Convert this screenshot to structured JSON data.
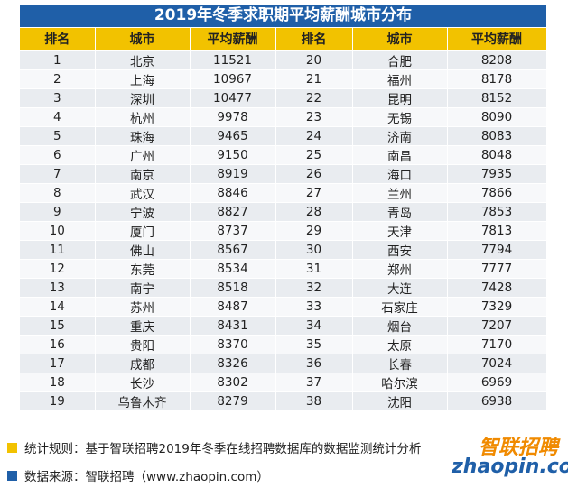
{
  "header": {
    "title": "2019年冬季求职期平均薪酬城市分布"
  },
  "table": {
    "columns": [
      "排名",
      "城市",
      "平均薪酬",
      "排名",
      "城市",
      "平均薪酬"
    ],
    "rows": [
      [
        1,
        "北京",
        11521,
        20,
        "合肥",
        8208
      ],
      [
        2,
        "上海",
        10967,
        21,
        "福州",
        8178
      ],
      [
        3,
        "深圳",
        10477,
        22,
        "昆明",
        8152
      ],
      [
        4,
        "杭州",
        9978,
        23,
        "无锡",
        8090
      ],
      [
        5,
        "珠海",
        9465,
        24,
        "济南",
        8083
      ],
      [
        6,
        "广州",
        9150,
        25,
        "南昌",
        8048
      ],
      [
        7,
        "南京",
        8919,
        26,
        "海口",
        7935
      ],
      [
        8,
        "武汉",
        8846,
        27,
        "兰州",
        7866
      ],
      [
        9,
        "宁波",
        8827,
        28,
        "青岛",
        7853
      ],
      [
        10,
        "厦门",
        8737,
        29,
        "天津",
        7813
      ],
      [
        11,
        "佛山",
        8567,
        30,
        "西安",
        7794
      ],
      [
        12,
        "东莞",
        8534,
        31,
        "郑州",
        7777
      ],
      [
        13,
        "南宁",
        8518,
        32,
        "大连",
        7428
      ],
      [
        14,
        "苏州",
        8487,
        33,
        "石家庄",
        7329
      ],
      [
        15,
        "重庆",
        8431,
        34,
        "烟台",
        7207
      ],
      [
        16,
        "贵阳",
        8370,
        35,
        "太原",
        7170
      ],
      [
        17,
        "成都",
        8326,
        36,
        "长春",
        7024
      ],
      [
        18,
        "长沙",
        8302,
        37,
        "哈尔滨",
        6969
      ],
      [
        19,
        "乌鲁木齐",
        8279,
        38,
        "沈阳",
        6938
      ]
    ]
  },
  "notes": [
    "统计规则：基于智联招聘2019年冬季在线招聘数据库的数据监测统计分析",
    "数据来源：智联招聘（www.zhaopin.com）"
  ],
  "logo": {
    "name": "智联招聘",
    "domain": "zhaopin.com"
  }
}
